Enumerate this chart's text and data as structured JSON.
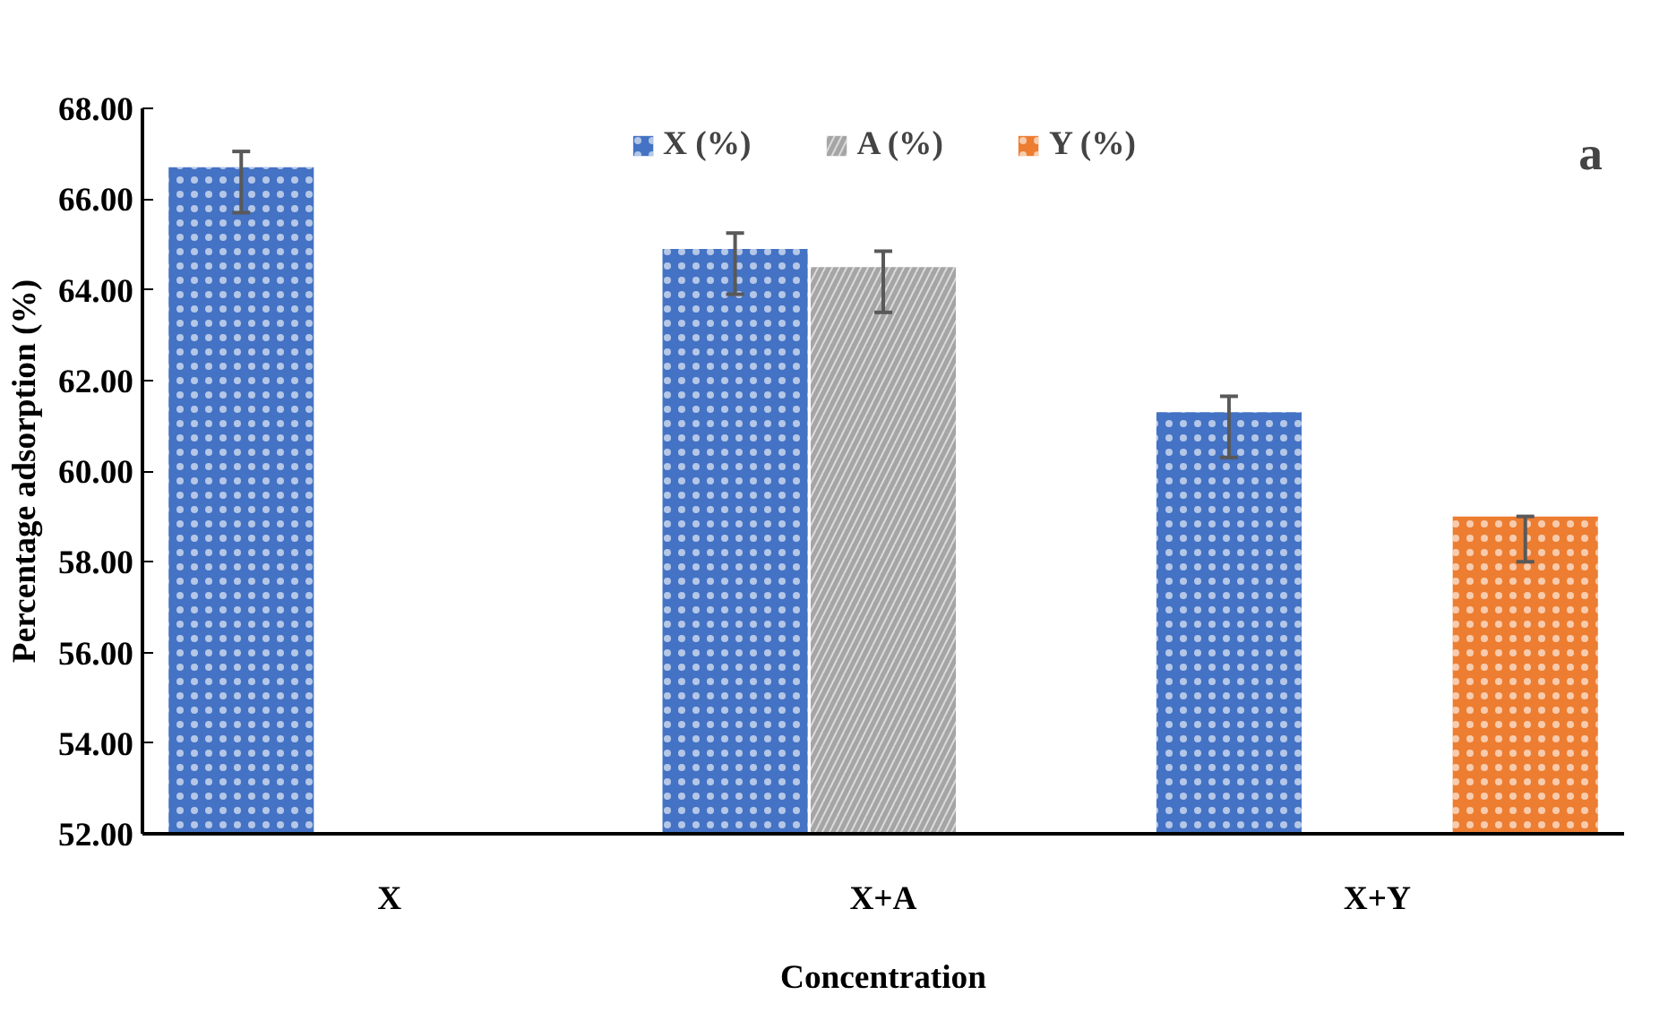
{
  "chart_data": {
    "type": "bar",
    "xlabel": "Concentration",
    "ylabel": "Percentage adsorption (%)",
    "annotations": [
      "a"
    ],
    "categories": [
      "X",
      "X+A",
      "X+Y"
    ],
    "series": [
      {
        "name": "X (%)",
        "color": "#4472c4",
        "values": [
          66.7,
          64.9,
          61.3
        ],
        "errors": [
          [
            65.7,
            67.05
          ],
          [
            63.9,
            65.25
          ],
          [
            60.3,
            61.65
          ]
        ]
      },
      {
        "name": "A (%)",
        "color": "#a5a5a5",
        "values": [
          null,
          64.5,
          null
        ],
        "errors": [
          null,
          [
            63.5,
            64.85
          ],
          null
        ]
      },
      {
        "name": "Y (%)",
        "color": "#ed7d31",
        "values": [
          null,
          null,
          59.0
        ],
        "errors": [
          null,
          null,
          [
            58.0,
            59.0
          ]
        ]
      }
    ],
    "ylim": [
      52,
      68
    ],
    "yticks": [
      {
        "value": 52,
        "label": "52.00"
      },
      {
        "value": 54,
        "label": "54.00"
      },
      {
        "value": 56,
        "label": "56.00"
      },
      {
        "value": 58,
        "label": "58.00"
      },
      {
        "value": 60,
        "label": "60.00"
      },
      {
        "value": 62,
        "label": "62.00"
      },
      {
        "value": 64,
        "label": "64.00"
      },
      {
        "value": 66,
        "label": "66.00"
      },
      {
        "value": 68,
        "label": "68.00"
      }
    ],
    "grid": false,
    "legend": "top"
  }
}
